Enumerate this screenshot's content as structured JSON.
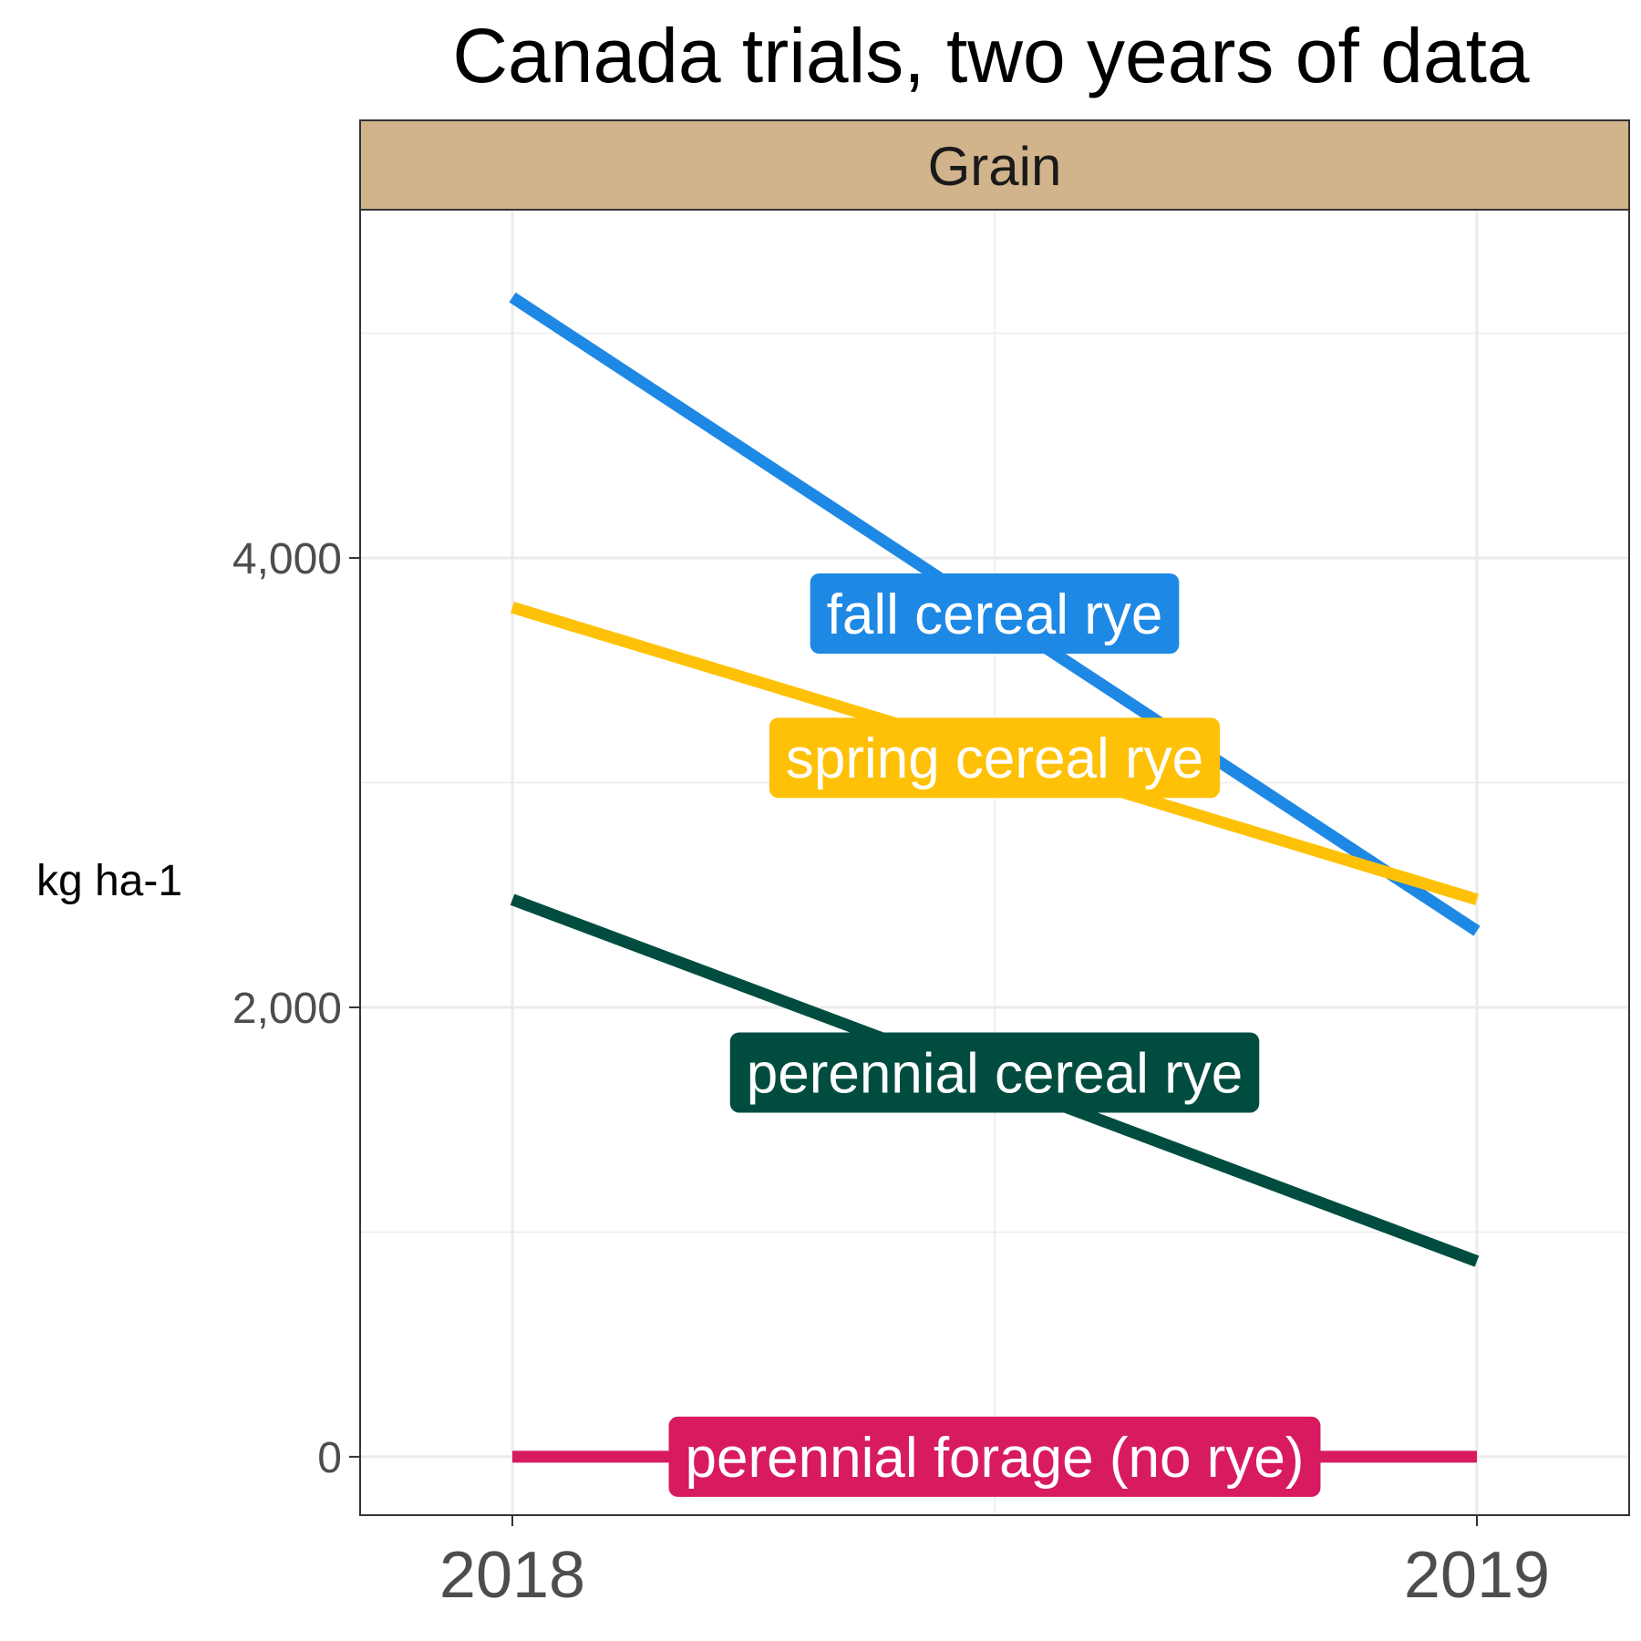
{
  "chart_data": {
    "type": "line",
    "title": "Canada trials, two years of data",
    "panel": "Grain",
    "xlabel": "",
    "ylabel": "kg ha-1",
    "x": [
      "2018",
      "2019"
    ],
    "ylim": [
      -260,
      5550
    ],
    "yticks": [
      0,
      2000,
      4000
    ],
    "ytick_labels": [
      "0",
      "2,000",
      "4,000"
    ],
    "grid": true,
    "legend": "direct labels on lines",
    "series": [
      {
        "name": "fall cereal rye",
        "color": "#1e88e5",
        "values": [
          5160,
          2340
        ]
      },
      {
        "name": "spring cereal rye",
        "color": "#ffc107",
        "values": [
          3780,
          2480
        ]
      },
      {
        "name": "perennial cereal rye",
        "color": "#004d40",
        "values": [
          2480,
          870
        ]
      },
      {
        "name": "perennial forage (no rye)",
        "color": "#d81b60",
        "values": [
          0,
          0
        ]
      }
    ]
  }
}
